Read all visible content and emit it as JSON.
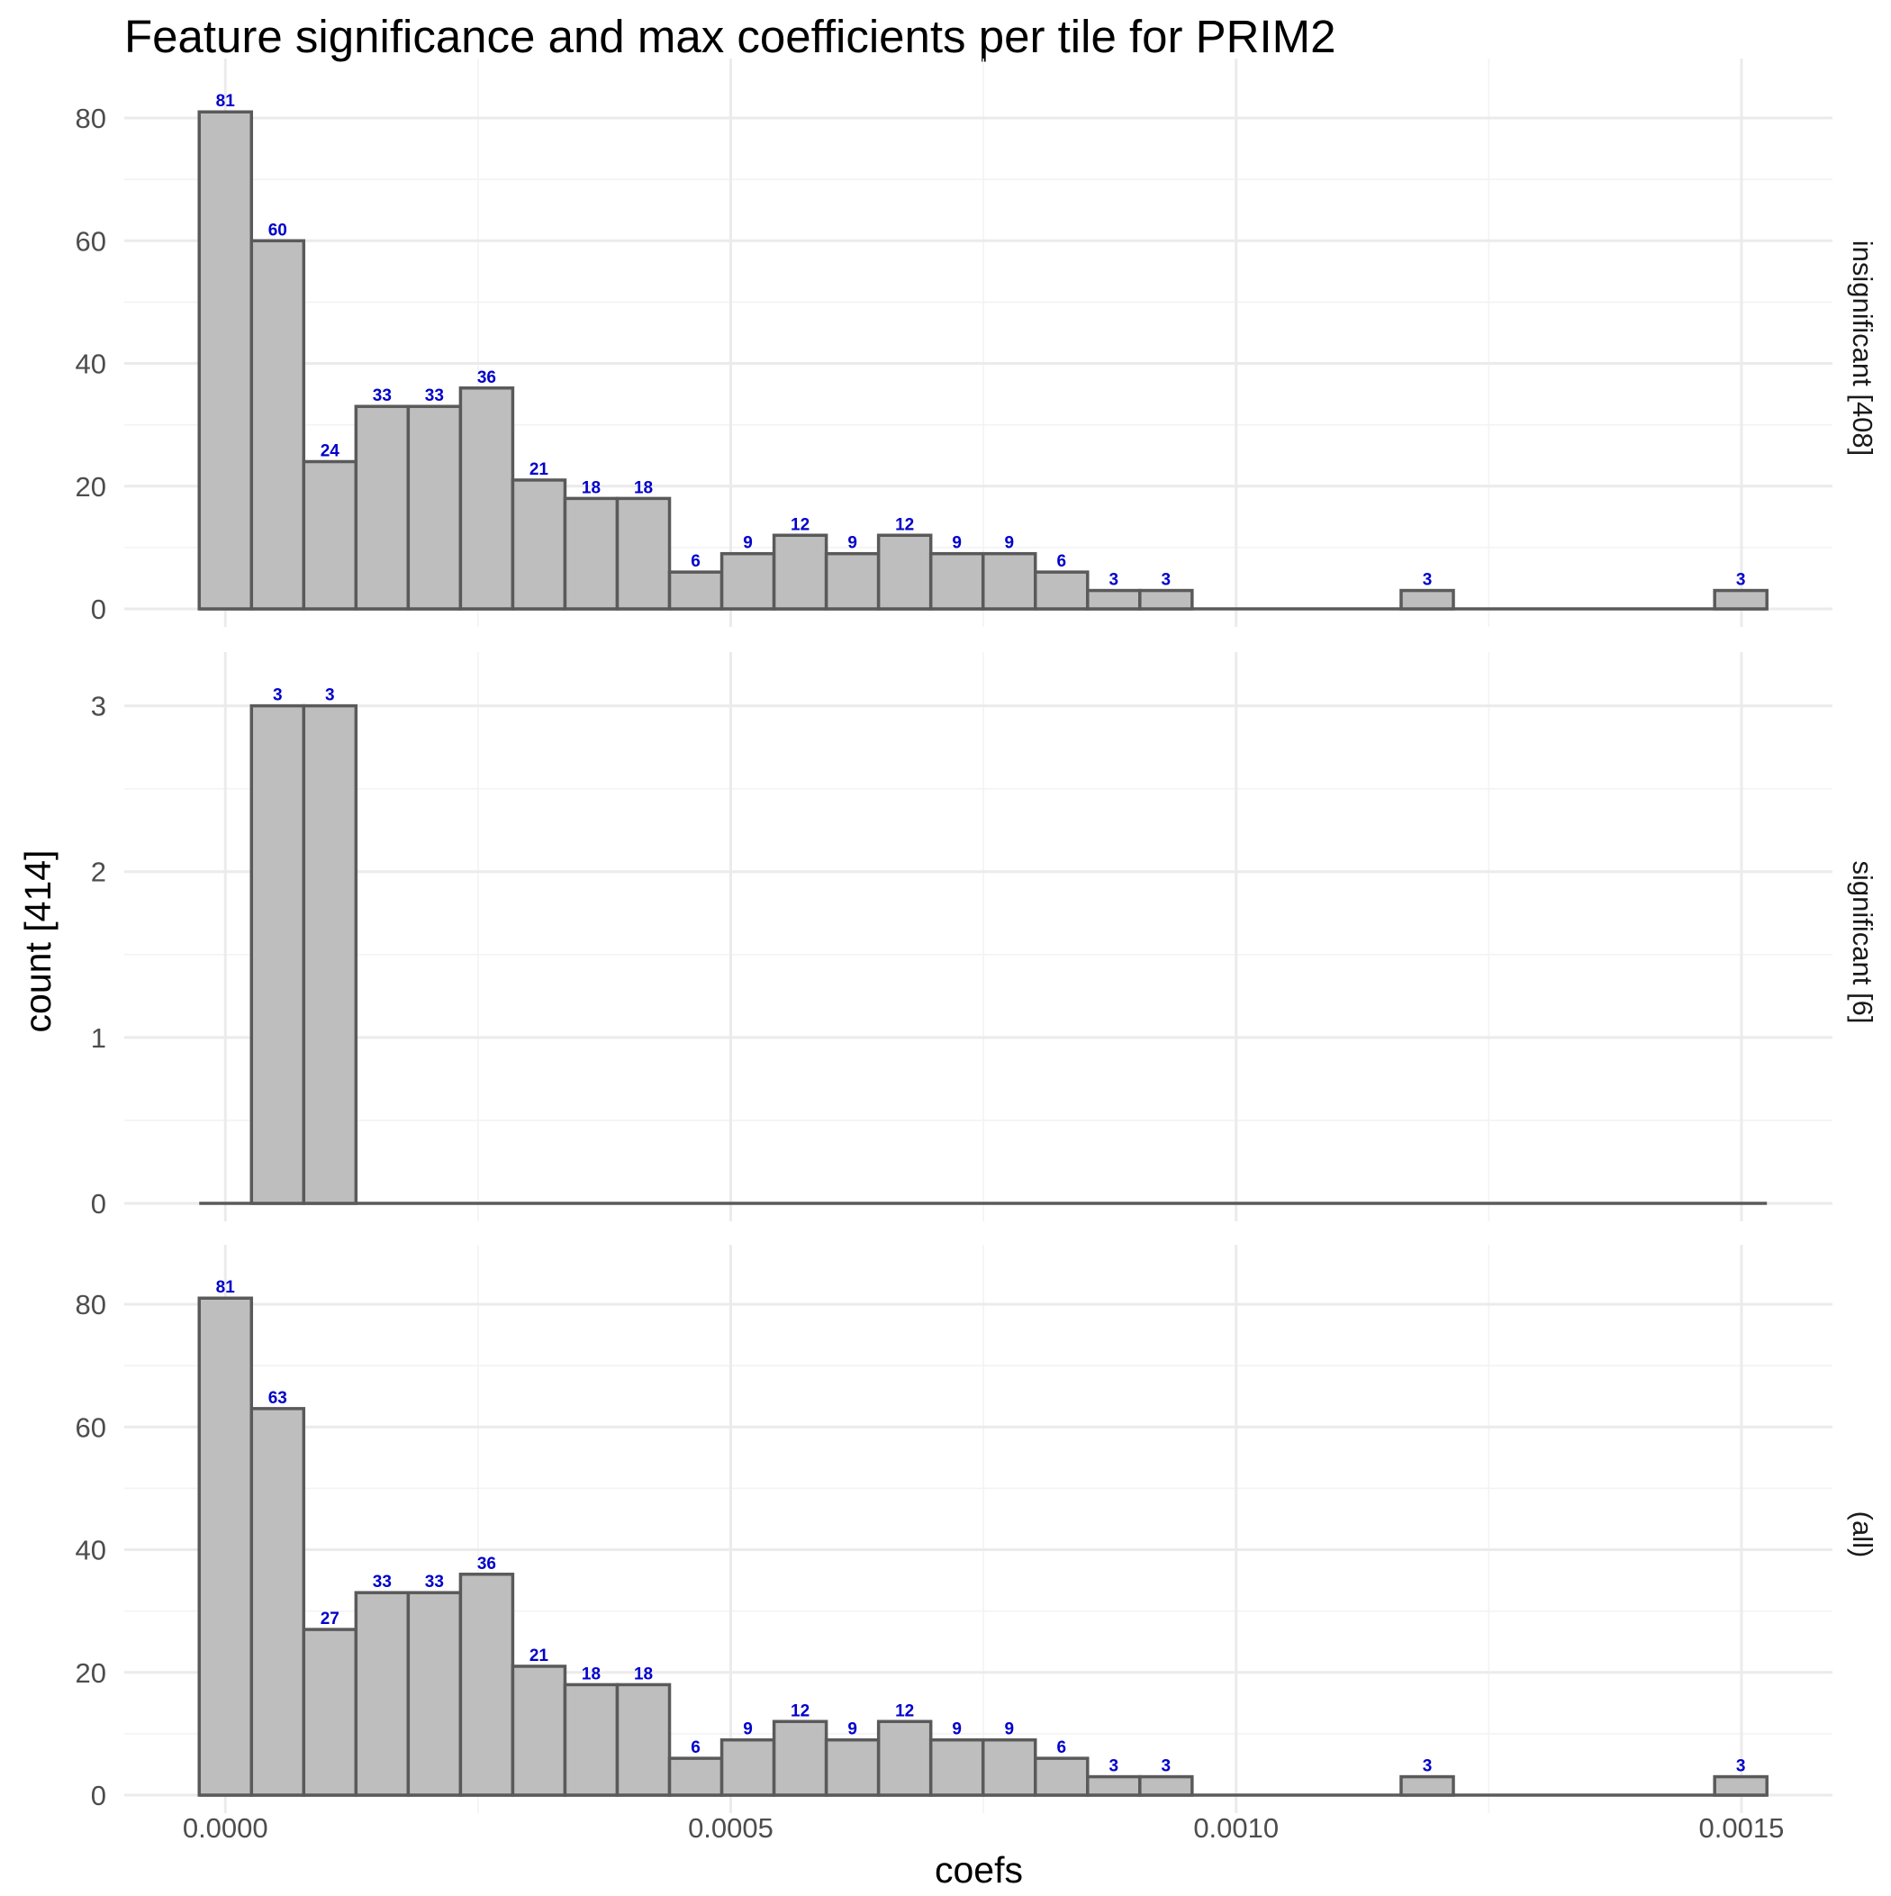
{
  "chart_data": {
    "type": "bar",
    "subtype": "faceted-histogram",
    "title": "Feature significance and max coefficients per tile for PRIM2",
    "xlabel": "coefs",
    "ylabel": "count [414]",
    "x_ticks": [
      "0.0000",
      "0.0005",
      "0.0010",
      "0.0015"
    ],
    "xlim": [
      -0.0001,
      0.00159
    ],
    "bin_width": 5.17e-05,
    "bin_centers": [
      0.0,
      5.17e-05,
      0.0001034,
      0.0001551,
      0.0002068,
      0.0002585,
      0.0003102,
      0.0003619,
      0.0004136,
      0.0004653,
      0.000517,
      0.0005687,
      0.0006204,
      0.0006721,
      0.0007238,
      0.0007755,
      0.0008272,
      0.0008789,
      0.0009306,
      0.0009823,
      0.001034,
      0.0010857,
      0.0011374,
      0.0011891,
      0.0012408,
      0.0012925,
      0.0013442,
      0.0013959,
      0.0014476,
      0.0014993
    ],
    "grid": true,
    "facets": [
      {
        "strip": "insignificant [408]",
        "ylim": [
          0,
          85
        ],
        "y_ticks": [
          0,
          20,
          40,
          60,
          80
        ],
        "values": [
          81,
          60,
          24,
          33,
          33,
          36,
          21,
          18,
          18,
          6,
          9,
          12,
          9,
          12,
          9,
          9,
          6,
          3,
          3,
          0,
          0,
          0,
          0,
          3,
          0,
          0,
          0,
          0,
          0,
          3
        ]
      },
      {
        "strip": "significant [6]",
        "ylim": [
          0,
          3.15
        ],
        "y_ticks": [
          0,
          1,
          2,
          3
        ],
        "values": [
          0,
          3,
          3,
          0,
          0,
          0,
          0,
          0,
          0,
          0,
          0,
          0,
          0,
          0,
          0,
          0,
          0,
          0,
          0,
          0,
          0,
          0,
          0,
          0,
          0,
          0,
          0,
          0,
          0,
          0
        ]
      },
      {
        "strip": "(all)",
        "ylim": [
          0,
          85
        ],
        "y_ticks": [
          0,
          20,
          40,
          60,
          80
        ],
        "values": [
          81,
          63,
          27,
          33,
          33,
          36,
          21,
          18,
          18,
          6,
          9,
          12,
          9,
          12,
          9,
          9,
          6,
          3,
          3,
          0,
          0,
          0,
          0,
          3,
          0,
          0,
          0,
          0,
          0,
          3
        ]
      }
    ],
    "colors": {
      "bar_fill": "#bebebe",
      "bar_stroke": "#5a5a5a",
      "label_color": "#0000cc",
      "grid_major": "#ebebeb",
      "grid_minor": "#f3f3f3"
    }
  }
}
